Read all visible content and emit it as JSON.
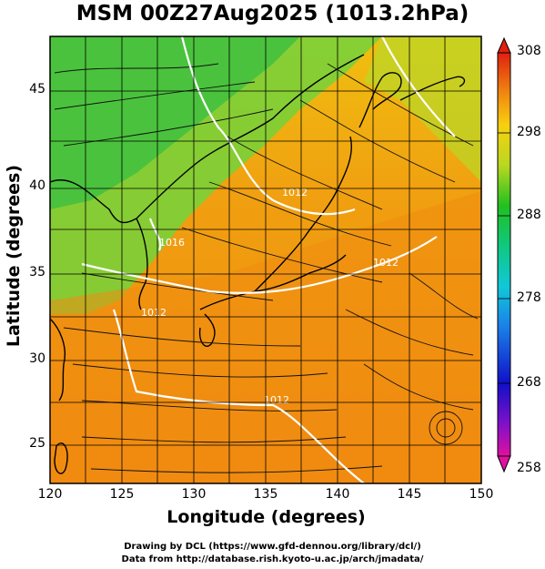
{
  "title": "MSM 00Z27Aug2025 (1013.2hPa)",
  "map": {
    "xlabel": "Longitude (degrees)",
    "ylabel": "Latitude  (degrees)",
    "lon_range": [
      120,
      150
    ],
    "lat_range": [
      22.4,
      47.6
    ],
    "x_ticks": [
      "120",
      "125",
      "130",
      "135",
      "140",
      "145",
      "150"
    ],
    "y_ticks": [
      "45",
      "40",
      "35",
      "30",
      "25"
    ],
    "isobar_labels": [
      "1012",
      "1016",
      "1012",
      "1012",
      "1012"
    ]
  },
  "colorbar": {
    "ticks": [
      "308",
      "298",
      "288",
      "278",
      "268",
      "258"
    ],
    "colors": [
      "#e8106a",
      "#c820c8",
      "#1010c8",
      "#1a80e8",
      "#10b8e0",
      "#10c8a0",
      "#20c020",
      "#8ad820",
      "#d8e020",
      "#f8b010",
      "#f06a10",
      "#e02010"
    ]
  },
  "credits": {
    "line1": "Drawing by DCL (https://www.gfd-dennou.org/library/dcl/)",
    "line2": "Data from http://database.rish.kyoto-u.ac.jp/arch/jmadata/"
  }
}
